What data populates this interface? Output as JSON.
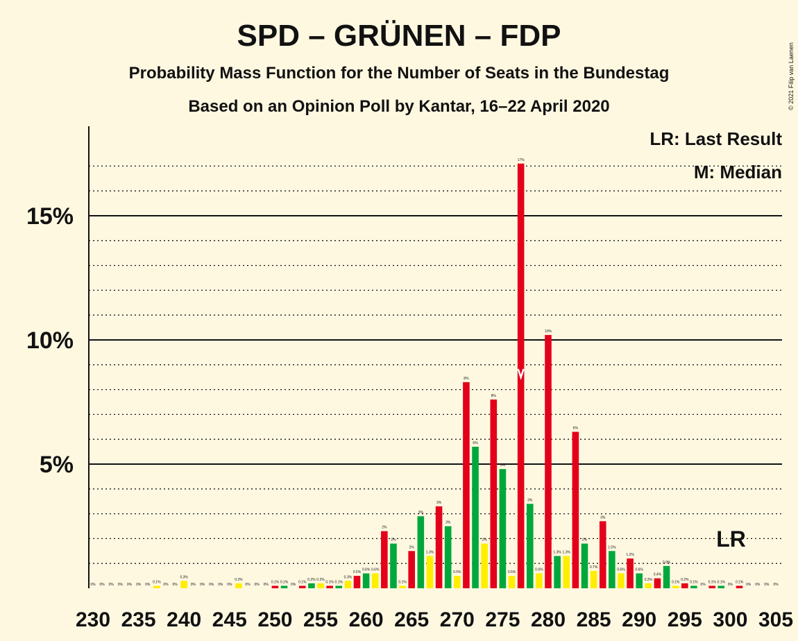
{
  "title": "SPD – GRÜNEN – FDP",
  "subtitle": "Probability Mass Function for the Number of Seats in the Bundestag",
  "subtitle2": "Based on an Opinion Poll by Kantar, 16–22 April 2020",
  "copyright": "© 2021 Filip van Laenen",
  "legend": {
    "lr": "LR: Last Result",
    "m": "M: Median"
  },
  "markers": {
    "lr_label": "LR",
    "lr_seat": 301,
    "median_seat": 277
  },
  "colors": {
    "background": "#fff8e1",
    "green": "#00a83c",
    "yellow": "#ffee00",
    "red": "#e4001b"
  },
  "chart_data": {
    "type": "bar",
    "xlabel": "",
    "ylabel": "",
    "xlim": [
      230,
      305
    ],
    "ylim": [
      0,
      18
    ],
    "x_ticks": [
      230,
      235,
      240,
      245,
      250,
      255,
      260,
      265,
      270,
      275,
      280,
      285,
      290,
      295,
      300,
      305
    ],
    "y_ticks": [
      {
        "value": 5,
        "label": "5%"
      },
      {
        "value": 10,
        "label": "10%"
      },
      {
        "value": 15,
        "label": "15%"
      }
    ],
    "color_cycle": [
      "green",
      "yellow",
      "red"
    ],
    "seats": [
      230,
      231,
      232,
      233,
      234,
      235,
      236,
      237,
      238,
      239,
      240,
      241,
      242,
      243,
      244,
      245,
      246,
      247,
      248,
      249,
      250,
      251,
      252,
      253,
      254,
      255,
      256,
      257,
      258,
      259,
      260,
      261,
      262,
      263,
      264,
      265,
      266,
      267,
      268,
      269,
      270,
      271,
      272,
      273,
      274,
      275,
      276,
      277,
      278,
      279,
      280,
      281,
      282,
      283,
      284,
      285,
      286,
      287,
      288,
      289,
      290,
      291,
      292,
      293,
      294,
      295,
      296,
      297,
      298,
      299,
      300,
      301,
      302,
      303,
      304,
      305
    ],
    "values": [
      0,
      0,
      0,
      0,
      0,
      0,
      0,
      0.1,
      0,
      0,
      0.3,
      0,
      0,
      0,
      0,
      0,
      0.2,
      0,
      0,
      0,
      0.1,
      0.1,
      0,
      0.1,
      0.2,
      0.2,
      0.1,
      0.1,
      0.3,
      0.5,
      0.6,
      0.6,
      2.3,
      1.8,
      0.1,
      1.5,
      2.9,
      1.3,
      3.3,
      2.5,
      0.5,
      8.3,
      5.7,
      1.8,
      7.6,
      4.8,
      0.5,
      17.1,
      3.4,
      0.6,
      10.2,
      1.3,
      1.3,
      6.3,
      1.8,
      0.7,
      2.7,
      1.5,
      0.6,
      1.2,
      0.6,
      0.2,
      0.4,
      0.9,
      0.1,
      0.2,
      0.1,
      0,
      0.1,
      0.1,
      0,
      0.1,
      0,
      0,
      0,
      0
    ],
    "labels": [
      "0%",
      "0%",
      "0%",
      "0%",
      "0%",
      "0%",
      "0%",
      "0.1%",
      "0%",
      "0%",
      "0.3%",
      "0%",
      "0%",
      "0%",
      "0%",
      "0%",
      "0.2%",
      "0%",
      "0%",
      "0%",
      "0.1%",
      "0.1%",
      "0%",
      "0.1%",
      "0.2%",
      "0.2%",
      "0.1%",
      "0.1%",
      "0.3%",
      "0.5%",
      "0.6%",
      "0.6%",
      "2%",
      "2%",
      "0.1%",
      "2%",
      "3%",
      "1.3%",
      "3%",
      "3%",
      "0.5%",
      "8%",
      "6%",
      "2%",
      "8%",
      "5%",
      "0.5%",
      "17%",
      "3%",
      "0.6%",
      "10%",
      "1.3%",
      "1.3%",
      "6%",
      "2%",
      "0.7%",
      "3%",
      "1.5%",
      "0.6%",
      "1.2%",
      "0.6%",
      "0.2%",
      "0.4%",
      "0.9%",
      "0.1%",
      "0.2%",
      "0.1%",
      "0%",
      "0.1%",
      "0.1%",
      "0%",
      "0.1%",
      "0%",
      "0%",
      "0%",
      "0%"
    ]
  }
}
